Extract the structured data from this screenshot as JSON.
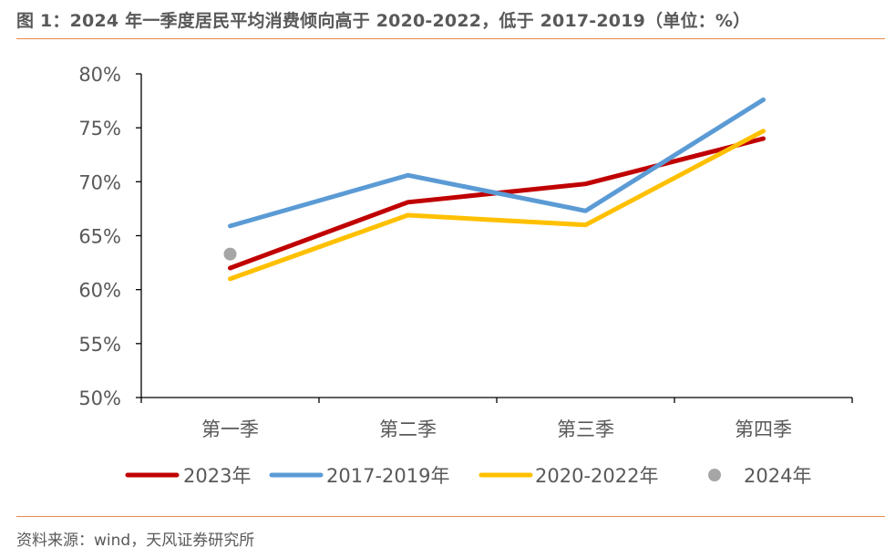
{
  "header": {
    "title": "图 1：2024 年一季度居民平均消费倾向高于 2020-2022，低于 2017-2019（单位：%）"
  },
  "footer": {
    "source": "资料来源：wind，天风证券研究所"
  },
  "chart_data": {
    "type": "line",
    "categories": [
      "第一季",
      "第二季",
      "第三季",
      "第四季"
    ],
    "y_tick_labels": [
      "50%",
      "55%",
      "60%",
      "65%",
      "70%",
      "75%",
      "80%"
    ],
    "ylim": [
      50,
      80
    ],
    "y_ticks": [
      50,
      55,
      60,
      65,
      70,
      75,
      80
    ],
    "grid": false,
    "legend_position": "bottom",
    "series": [
      {
        "name": "2023年",
        "values": [
          62.0,
          68.1,
          69.8,
          74.0
        ],
        "color": "#c00000",
        "style": "line"
      },
      {
        "name": "2017-2019年",
        "values": [
          65.9,
          70.6,
          67.3,
          77.6
        ],
        "color": "#5b9bd5",
        "style": "line"
      },
      {
        "name": "2020-2022年",
        "values": [
          61.0,
          66.9,
          66.0,
          74.7
        ],
        "color": "#ffc000",
        "style": "line"
      },
      {
        "name": "2024年",
        "values": [
          63.3,
          null,
          null,
          null
        ],
        "color": "#a6a6a6",
        "style": "marker"
      }
    ]
  }
}
